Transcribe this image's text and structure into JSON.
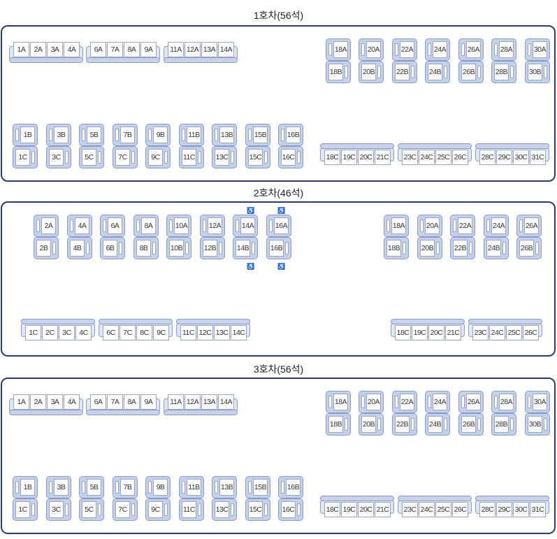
{
  "cars": [
    {
      "title": "1호차(56석)",
      "row_a_groups": [
        [
          "1A",
          "2A",
          "3A",
          "4A"
        ],
        [
          "6A",
          "7A",
          "8A",
          "9A"
        ],
        [
          "11A",
          "12A",
          "13A",
          "14A"
        ]
      ],
      "row_ab_pairs": [
        [
          "18A",
          "18B"
        ],
        [
          "20A",
          "20B"
        ],
        [
          "22A",
          "22B"
        ],
        [
          "24A",
          "24B"
        ],
        [
          "26A",
          "26B"
        ],
        [
          "28A",
          "28B"
        ],
        [
          "30A",
          "30B"
        ]
      ],
      "row_bc_pairs": [
        [
          "1B",
          "1C"
        ],
        [
          "3B",
          "3C"
        ],
        [
          "5B",
          "5C"
        ],
        [
          "7B",
          "7C"
        ],
        [
          "9B",
          "9C"
        ],
        [
          "11B",
          "11C"
        ],
        [
          "13B",
          "13C"
        ],
        [
          "15B",
          "15C"
        ],
        [
          "16B",
          "16C"
        ]
      ],
      "row_c_groups": [
        [
          "18C",
          "19C",
          "20C",
          "21C"
        ],
        [
          "23C",
          "24C",
          "25C",
          "26C"
        ],
        [
          "28C",
          "29C",
          "30C",
          "31C"
        ]
      ]
    },
    {
      "title": "2호차(46석)",
      "row_ab_pairs_left": [
        [
          "2A",
          "2B"
        ],
        [
          "4A",
          "4B"
        ],
        [
          "6A",
          "6B"
        ],
        [
          "8A",
          "8B"
        ],
        [
          "10A",
          "10B"
        ],
        [
          "12A",
          "12B"
        ],
        [
          "14A",
          "14B"
        ],
        [
          "16A",
          "16B"
        ]
      ],
      "row_ab_pairs_right": [
        [
          "18A",
          "18B"
        ],
        [
          "20A",
          "20B"
        ],
        [
          "22A",
          "22B"
        ],
        [
          "24A",
          "24B"
        ],
        [
          "26A",
          "26B"
        ]
      ],
      "row_c_groups_left": [
        [
          "1C",
          "2C",
          "3C",
          "4C"
        ],
        [
          "6C",
          "7C",
          "8C",
          "9C"
        ],
        [
          "11C",
          "12C",
          "13C",
          "14C"
        ]
      ],
      "row_c_groups_right": [
        [
          "18C",
          "19C",
          "20C",
          "21C"
        ],
        [
          "23C",
          "24C",
          "25C",
          "26C"
        ]
      ],
      "wheelchair_icon": "♿"
    },
    {
      "title": "3호차(56석)",
      "row_a_groups": [
        [
          "1A",
          "2A",
          "3A",
          "4A"
        ],
        [
          "6A",
          "7A",
          "8A",
          "9A"
        ],
        [
          "11A",
          "12A",
          "13A",
          "14A"
        ]
      ],
      "row_ab_pairs": [
        [
          "18A",
          "18B"
        ],
        [
          "20A",
          "20B"
        ],
        [
          "22A",
          "22B"
        ],
        [
          "24A",
          "24B"
        ],
        [
          "26A",
          "26B"
        ],
        [
          "28A",
          "28B"
        ],
        [
          "30A",
          "30B"
        ]
      ],
      "row_bc_pairs": [
        [
          "1B",
          "1C"
        ],
        [
          "3B",
          "3C"
        ],
        [
          "5B",
          "5C"
        ],
        [
          "7B",
          "7C"
        ],
        [
          "9B",
          "9C"
        ],
        [
          "11B",
          "11C"
        ],
        [
          "13B",
          "13C"
        ],
        [
          "15B",
          "15C"
        ],
        [
          "16B",
          "16C"
        ]
      ],
      "row_c_groups": [
        [
          "18C",
          "19C",
          "20C",
          "21C"
        ],
        [
          "23C",
          "24C",
          "25C",
          "26C"
        ],
        [
          "28C",
          "29C",
          "30C",
          "31C"
        ]
      ]
    }
  ],
  "colors": {
    "border": "#2a3a72",
    "seat_fill": "#c5d0ea",
    "seat_stroke": "#8a9cc8"
  }
}
